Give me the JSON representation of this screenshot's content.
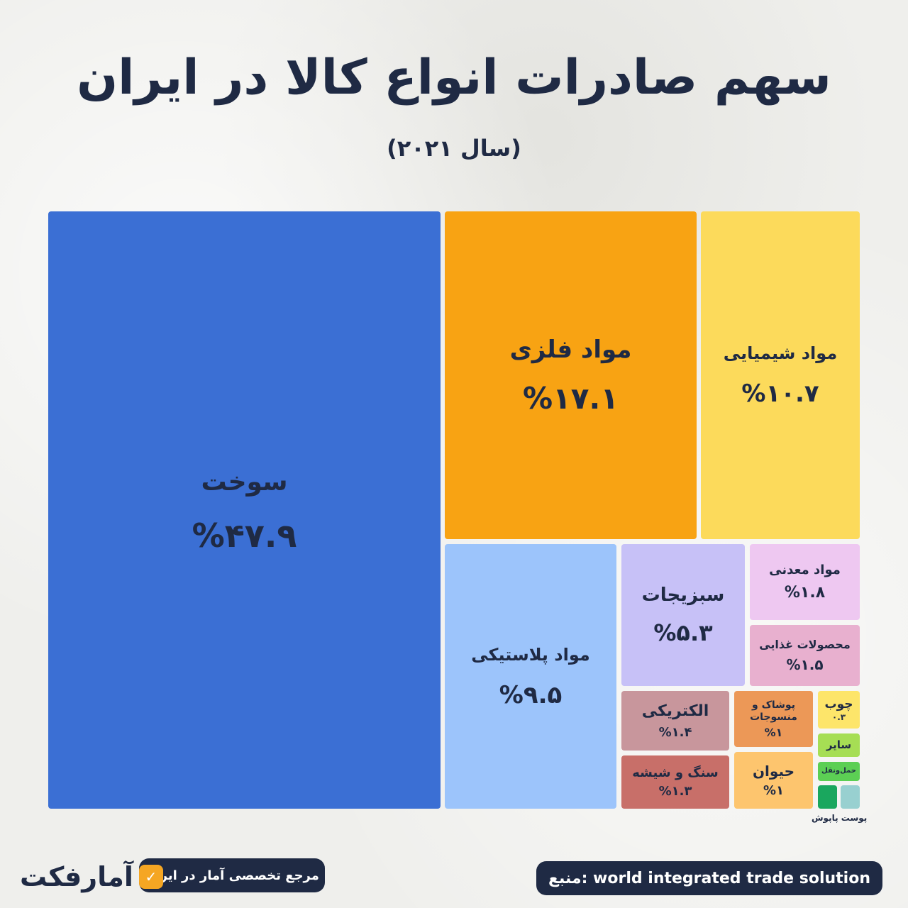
{
  "title": "سهم صادرات انواع کالا در ایران",
  "subtitle": "(سال ۲۰۲۱)",
  "chart_data": {
    "type": "treemap",
    "title": "سهم صادرات انواع کالا در ایران",
    "subtitle": "(سال ۲۰۲۱)",
    "unit": "%",
    "items": [
      {
        "label": "سوخت",
        "value": 47.9,
        "value_text": "%۴۷.۹",
        "color": "#3b6fd4"
      },
      {
        "label": "مواد فلزی",
        "value": 17.1,
        "value_text": "%۱۷.۱",
        "color": "#f8a313"
      },
      {
        "label": "مواد شیمیایی",
        "value": 10.7,
        "value_text": "%۱۰.۷",
        "color": "#fcda5b"
      },
      {
        "label": "مواد پلاستیکی",
        "value": 9.5,
        "value_text": "%۹.۵",
        "color": "#9cc4fb"
      },
      {
        "label": "سبزیجات",
        "value": 5.3,
        "value_text": "%۵.۳",
        "color": "#c7c1f7"
      },
      {
        "label": "مواد معدنی",
        "value": 1.8,
        "value_text": "%۱.۸",
        "color": "#eec8f1"
      },
      {
        "label": "محصولات غذایی",
        "value": 1.5,
        "value_text": "%۱.۵",
        "color": "#e8b0cf"
      },
      {
        "label": "الکتریکی",
        "value": 1.4,
        "value_text": "%۱.۴",
        "color": "#c8969c"
      },
      {
        "label": "سنگ و شیشه",
        "value": 1.3,
        "value_text": "%۱.۳",
        "color": "#c86f69"
      },
      {
        "label": "پوشاک و منسوجات",
        "value": 1,
        "value_text": "%۱",
        "color": "#ec9857"
      },
      {
        "label": "حیوان",
        "value": 1,
        "value_text": "%۱",
        "color": "#fdc56e"
      },
      {
        "label": "چوب",
        "value": 0.3,
        "value_text": "۰.۳",
        "color": "#fde56a"
      },
      {
        "label": "سایر",
        "value": null,
        "value_text": "",
        "color": "#a6de54"
      },
      {
        "label": "حمل‌ونقل",
        "value": null,
        "value_text": "",
        "color": "#5ccf54"
      },
      {
        "label": "",
        "value": null,
        "value_text": "",
        "color": "#1aa75e"
      },
      {
        "label": "",
        "value": null,
        "value_text": "",
        "color": "#98d0d0"
      }
    ],
    "note": "پوست پاپوش"
  },
  "footer": {
    "source": "منبع: world integrated trade solution",
    "tagline": "مرجع تخصصی آمار در ایران",
    "brand": "آمارفکت"
  }
}
